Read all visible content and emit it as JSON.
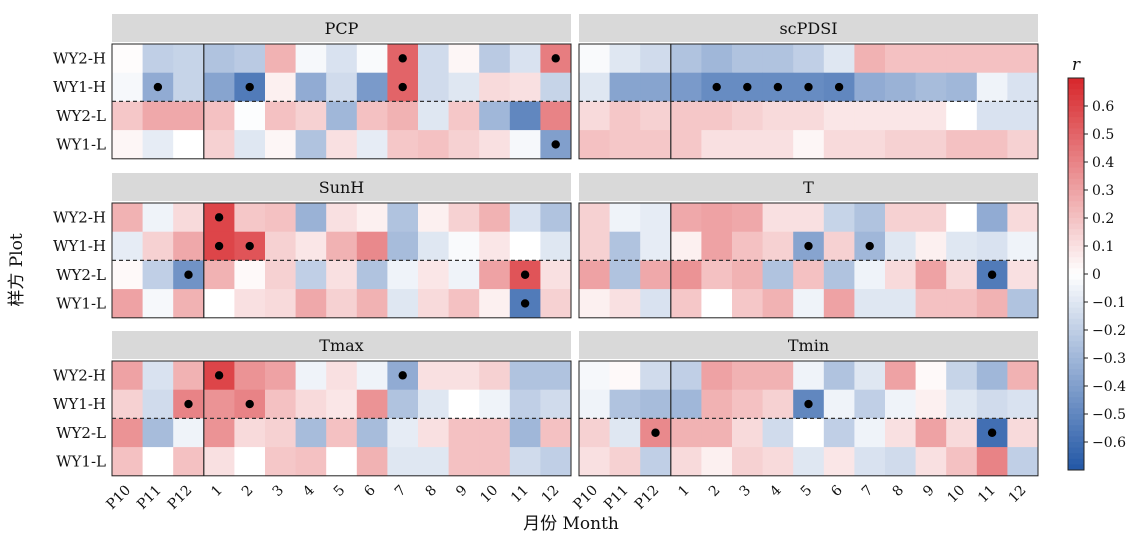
{
  "chart_data": {
    "type": "heatmap",
    "xlabel": "月份 Month",
    "ylabel": "样方 Plot",
    "columns": [
      "P10",
      "P11",
      "P12",
      "1",
      "2",
      "3",
      "4",
      "5",
      "6",
      "7",
      "8",
      "9",
      "10",
      "11",
      "12"
    ],
    "rows": [
      "WY2-H",
      "WY1-H",
      "WY2-L",
      "WY1-L"
    ],
    "colorbar": {
      "label": "r",
      "min": -0.7,
      "max": 0.7,
      "ticks": [
        0.6,
        0.5,
        0.4,
        0.3,
        0.2,
        0.1,
        0,
        -0.1,
        -0.2,
        -0.3,
        -0.4,
        -0.5,
        -0.6
      ],
      "tick_labels": [
        "0.6",
        "0.5",
        "0.4",
        "0.3",
        "0.2",
        "0.1",
        "0",
        "−0.1",
        "−0.2",
        "−0.3",
        "−0.4",
        "−0.5",
        "−0.6"
      ],
      "colors": [
        "#2257a6",
        "#ffffff",
        "#d7262b"
      ]
    },
    "grid": false,
    "panels": [
      {
        "title": "PCP",
        "values": [
          [
            0.01,
            -0.2,
            -0.18,
            -0.25,
            -0.22,
            0.25,
            -0.03,
            -0.12,
            -0.02,
            0.5,
            -0.15,
            0.03,
            -0.22,
            -0.12,
            0.42
          ],
          [
            -0.03,
            -0.35,
            -0.18,
            -0.38,
            -0.55,
            0.05,
            -0.35,
            -0.15,
            -0.42,
            0.5,
            -0.15,
            -0.1,
            0.12,
            0.1,
            -0.18
          ],
          [
            0.18,
            0.28,
            0.28,
            0.2,
            -0.01,
            0.2,
            0.15,
            -0.3,
            0.2,
            0.25,
            -0.1,
            0.18,
            -0.3,
            -0.5,
            0.4
          ],
          [
            0.03,
            -0.08,
            0.0,
            0.15,
            -0.1,
            0.03,
            -0.25,
            0.1,
            -0.08,
            0.18,
            0.2,
            0.15,
            0.1,
            -0.03,
            -0.4
          ]
        ],
        "significant": [
          [
            0,
            9
          ],
          [
            0,
            14
          ],
          [
            1,
            1
          ],
          [
            1,
            4
          ],
          [
            1,
            9
          ],
          [
            3,
            14
          ]
        ]
      },
      {
        "title": "scPDSI",
        "values": [
          [
            -0.02,
            -0.1,
            -0.15,
            -0.25,
            -0.3,
            -0.25,
            -0.25,
            -0.2,
            -0.1,
            0.25,
            0.2,
            0.2,
            0.2,
            0.2,
            0.2
          ],
          [
            -0.1,
            -0.38,
            -0.38,
            -0.42,
            -0.48,
            -0.48,
            -0.48,
            -0.48,
            -0.5,
            -0.35,
            -0.32,
            -0.28,
            -0.3,
            -0.05,
            -0.12
          ],
          [
            0.12,
            0.18,
            0.15,
            0.18,
            0.18,
            0.15,
            0.12,
            0.12,
            0.08,
            0.08,
            0.08,
            0.08,
            0.0,
            -0.12,
            -0.12
          ],
          [
            0.2,
            0.18,
            0.18,
            0.18,
            0.1,
            0.1,
            0.1,
            0.03,
            0.12,
            0.12,
            0.15,
            0.15,
            0.2,
            0.2,
            0.15
          ]
        ],
        "significant": [
          [
            1,
            4
          ],
          [
            1,
            5
          ],
          [
            1,
            6
          ],
          [
            1,
            7
          ],
          [
            1,
            8
          ]
        ]
      },
      {
        "title": "SunH",
        "values": [
          [
            0.25,
            -0.05,
            0.12,
            0.6,
            0.18,
            0.2,
            -0.32,
            0.1,
            0.05,
            -0.25,
            0.05,
            0.15,
            0.25,
            -0.12,
            -0.25
          ],
          [
            -0.08,
            0.15,
            0.28,
            0.6,
            0.55,
            0.15,
            0.08,
            0.25,
            0.38,
            -0.28,
            -0.1,
            -0.02,
            0.08,
            0.0,
            -0.1
          ],
          [
            0.02,
            -0.2,
            -0.45,
            0.25,
            0.02,
            0.15,
            -0.2,
            0.1,
            -0.25,
            -0.05,
            0.08,
            -0.05,
            0.3,
            0.55,
            0.1
          ],
          [
            0.3,
            -0.03,
            0.25,
            0.0,
            0.1,
            0.12,
            0.28,
            0.15,
            0.25,
            -0.1,
            0.12,
            0.2,
            0.05,
            -0.55,
            0.15
          ]
        ],
        "significant": [
          [
            0,
            3
          ],
          [
            1,
            3
          ],
          [
            1,
            4
          ],
          [
            2,
            2
          ],
          [
            2,
            13
          ],
          [
            3,
            13
          ]
        ]
      },
      {
        "title": "T",
        "values": [
          [
            0.15,
            -0.05,
            -0.08,
            0.28,
            0.3,
            0.28,
            0.1,
            0.1,
            -0.18,
            -0.25,
            0.15,
            0.15,
            0.0,
            -0.35,
            0.12
          ],
          [
            0.15,
            -0.25,
            -0.08,
            0.05,
            0.3,
            0.2,
            0.15,
            -0.38,
            0.15,
            -0.3,
            -0.1,
            0.05,
            -0.1,
            -0.12,
            -0.05
          ],
          [
            0.3,
            -0.25,
            0.28,
            0.35,
            0.2,
            0.25,
            -0.25,
            0.2,
            -0.25,
            -0.05,
            0.12,
            0.3,
            0.12,
            -0.55,
            0.1
          ],
          [
            0.05,
            0.1,
            -0.12,
            0.18,
            0.0,
            0.18,
            0.25,
            -0.05,
            0.3,
            -0.1,
            -0.1,
            0.2,
            0.2,
            0.25,
            -0.25
          ]
        ],
        "significant": [
          [
            1,
            7
          ],
          [
            1,
            9
          ],
          [
            2,
            13
          ]
        ]
      },
      {
        "title": "Tmax",
        "values": [
          [
            0.3,
            -0.12,
            0.25,
            0.6,
            0.35,
            0.3,
            -0.05,
            0.1,
            -0.05,
            -0.35,
            0.1,
            0.1,
            0.15,
            -0.25,
            -0.25
          ],
          [
            0.15,
            -0.15,
            0.4,
            0.35,
            0.4,
            0.2,
            0.12,
            0.08,
            0.35,
            -0.25,
            -0.1,
            0.0,
            -0.05,
            -0.2,
            -0.15
          ],
          [
            0.35,
            -0.28,
            -0.05,
            0.35,
            0.12,
            0.15,
            -0.28,
            0.2,
            -0.28,
            -0.08,
            0.1,
            0.2,
            0.2,
            -0.3,
            0.2
          ],
          [
            0.2,
            0.0,
            0.2,
            0.1,
            0.0,
            0.18,
            0.2,
            0.0,
            0.25,
            -0.1,
            -0.1,
            0.2,
            0.2,
            -0.15,
            -0.2
          ]
        ],
        "significant": [
          [
            0,
            3
          ],
          [
            0,
            9
          ],
          [
            1,
            2
          ],
          [
            1,
            4
          ]
        ]
      },
      {
        "title": "Tmin",
        "values": [
          [
            -0.03,
            0.02,
            -0.15,
            -0.2,
            0.3,
            0.25,
            0.25,
            -0.05,
            -0.25,
            -0.1,
            0.3,
            0.02,
            -0.18,
            -0.3,
            0.25
          ],
          [
            -0.05,
            -0.25,
            -0.28,
            -0.3,
            0.25,
            0.2,
            0.15,
            -0.5,
            -0.05,
            -0.2,
            -0.05,
            0.05,
            -0.1,
            -0.15,
            -0.12
          ],
          [
            0.15,
            -0.1,
            0.38,
            0.25,
            0.25,
            0.12,
            -0.15,
            0.0,
            -0.2,
            -0.05,
            0.1,
            0.3,
            0.12,
            -0.6,
            0.12
          ],
          [
            0.1,
            0.15,
            -0.2,
            0.12,
            0.05,
            0.15,
            0.12,
            -0.1,
            0.08,
            -0.12,
            -0.15,
            0.1,
            0.2,
            0.4,
            -0.2
          ]
        ],
        "significant": [
          [
            1,
            7
          ],
          [
            2,
            2
          ],
          [
            2,
            13
          ]
        ]
      }
    ]
  }
}
